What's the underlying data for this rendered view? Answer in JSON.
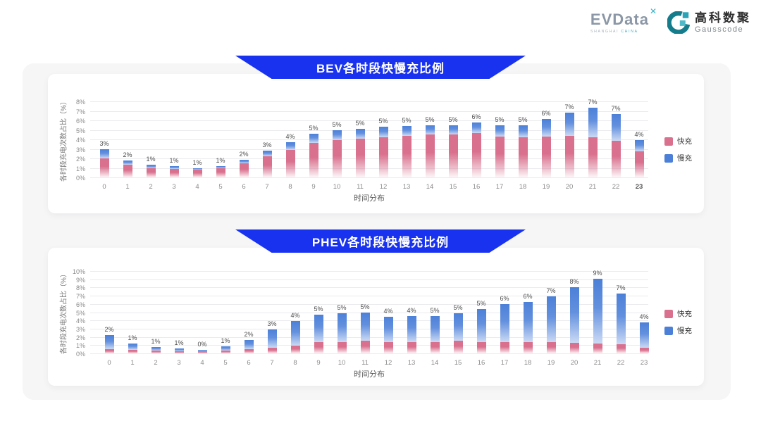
{
  "header": {
    "evdata": {
      "wordmark": "EVData",
      "mark": "✕",
      "tagline_left": "SHANGHAI",
      "tagline_right": "CHINA"
    },
    "gausscode": {
      "name_cn": "高科数聚",
      "name_en": "Gausscode"
    }
  },
  "colors": {
    "banner_blue": "#1832f0",
    "fast_pink": "#d9708e",
    "slow_blue": "#4c80d8",
    "panel_gray": "#f6f6f7",
    "logo_teal": "#2aa3b6",
    "logo_teal_dark": "#157c8c"
  },
  "chart_data": [
    {
      "id": "bev",
      "type": "bar",
      "stacked": true,
      "title": "BEV各时段快慢充比例",
      "xlabel": "时间分布",
      "ylabel": "各时段充电次数占比（%）",
      "x": [
        "0",
        "1",
        "2",
        "3",
        "4",
        "5",
        "6",
        "7",
        "8",
        "9",
        "10",
        "11",
        "12",
        "13",
        "14",
        "15",
        "16",
        "17",
        "18",
        "19",
        "20",
        "21",
        "22",
        "23"
      ],
      "series": [
        {
          "name": "快充",
          "values": [
            2.0,
            1.3,
            1.0,
            0.9,
            0.85,
            1.0,
            1.45,
            2.25,
            2.9,
            3.6,
            3.95,
            4.1,
            4.25,
            4.4,
            4.55,
            4.5,
            4.7,
            4.3,
            4.25,
            4.3,
            4.35,
            4.2,
            3.85,
            2.75
          ]
        },
        {
          "name": "慢充",
          "values": [
            0.95,
            0.5,
            0.3,
            0.25,
            0.1,
            0.2,
            0.4,
            0.6,
            0.8,
            1.0,
            1.05,
            1.0,
            1.05,
            1.0,
            0.9,
            0.95,
            1.05,
            1.15,
            1.2,
            1.85,
            2.5,
            3.1,
            2.85,
            1.15
          ]
        }
      ],
      "bar_labels": [
        "3%",
        "2%",
        "1%",
        "1%",
        "1%",
        "1%",
        "2%",
        "3%",
        "4%",
        "5%",
        "5%",
        "5%",
        "5%",
        "5%",
        "5%",
        "5%",
        "6%",
        "5%",
        "5%",
        "6%",
        "7%",
        "7%",
        "7%",
        "4%"
      ],
      "ylim": [
        0,
        8
      ],
      "ytick_step": 1,
      "grid": true,
      "legend_position": "right"
    },
    {
      "id": "phev",
      "type": "bar",
      "stacked": true,
      "title": "PHEV各时段快慢充比例",
      "xlabel": "时间分布",
      "ylabel": "各时段充电次数占比（%）",
      "x": [
        "0",
        "1",
        "2",
        "3",
        "4",
        "5",
        "6",
        "7",
        "8",
        "9",
        "10",
        "11",
        "12",
        "13",
        "14",
        "15",
        "16",
        "17",
        "18",
        "19",
        "20",
        "21",
        "22",
        "23"
      ],
      "series": [
        {
          "name": "快充",
          "values": [
            0.5,
            0.4,
            0.35,
            0.3,
            0.25,
            0.35,
            0.5,
            0.7,
            0.95,
            1.35,
            1.4,
            1.55,
            1.35,
            1.35,
            1.35,
            1.5,
            1.4,
            1.4,
            1.4,
            1.4,
            1.3,
            1.2,
            1.1,
            0.7
          ]
        },
        {
          "name": "慢充",
          "values": [
            1.7,
            0.8,
            0.45,
            0.3,
            0.2,
            0.5,
            1.1,
            2.2,
            3.0,
            3.35,
            3.5,
            3.45,
            3.1,
            3.15,
            3.2,
            3.4,
            4.0,
            4.6,
            4.8,
            5.5,
            6.7,
            7.9,
            6.2,
            3.1
          ]
        }
      ],
      "bar_labels": [
        "2%",
        "1%",
        "1%",
        "1%",
        "0%",
        "1%",
        "2%",
        "3%",
        "4%",
        "5%",
        "5%",
        "5%",
        "4%",
        "4%",
        "5%",
        "5%",
        "5%",
        "6%",
        "6%",
        "7%",
        "8%",
        "9%",
        "7%",
        "4%"
      ],
      "ylim": [
        0,
        10
      ],
      "ytick_step": 1,
      "grid": true,
      "legend_position": "right"
    }
  ]
}
